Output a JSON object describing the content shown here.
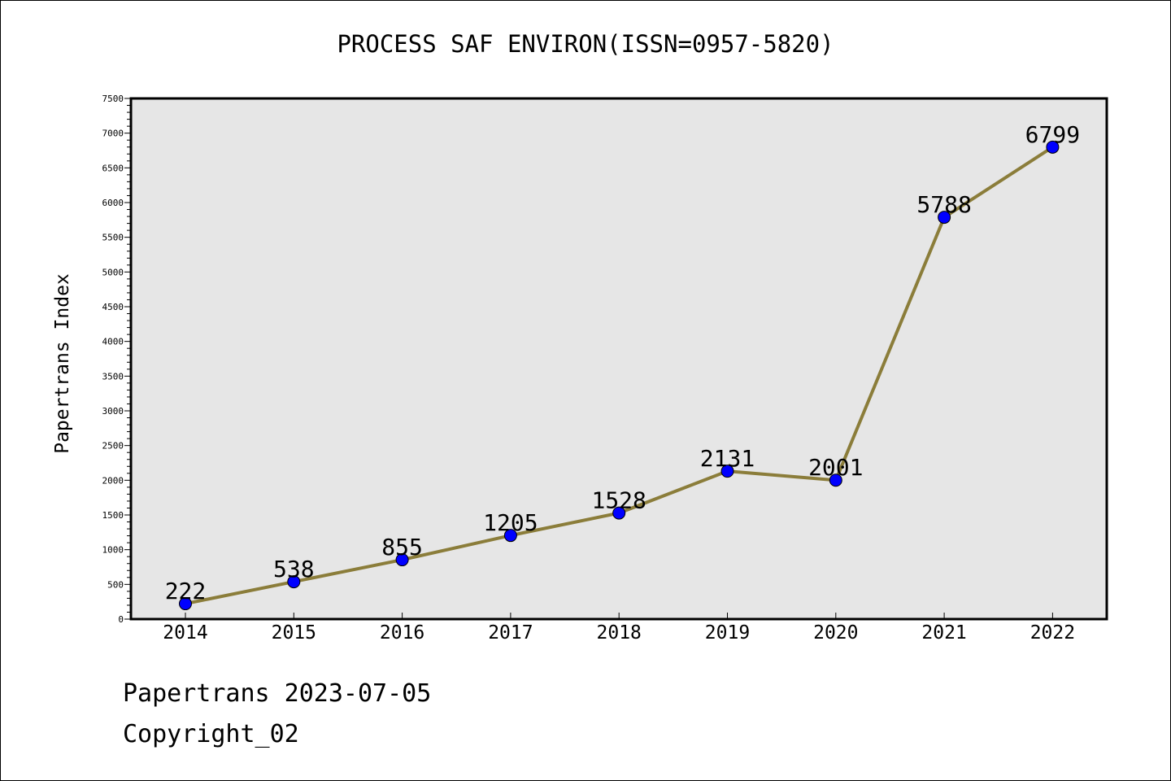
{
  "chart_data": {
    "type": "line",
    "title": "PROCESS SAF ENVIRON(ISSN=0957-5820)",
    "xlabel": "",
    "ylabel": "Papertrans Index",
    "categories": [
      "2014",
      "2015",
      "2016",
      "2017",
      "2018",
      "2019",
      "2020",
      "2021",
      "2022"
    ],
    "values": [
      222,
      538,
      855,
      1205,
      1528,
      2131,
      2001,
      5788,
      6799
    ],
    "ylim": [
      0,
      7500
    ],
    "yticks": [
      0,
      500,
      1000,
      1500,
      2000,
      2500,
      3000,
      3500,
      4000,
      4500,
      5000,
      5500,
      6000,
      6500,
      7000,
      7500
    ],
    "data_labels": true,
    "grid": false,
    "colors": {
      "line": "#8b7d3a",
      "marker": "#0000ff",
      "plot_background": "#e6e6e6"
    }
  },
  "footer": {
    "date_line": "Papertrans 2023-07-05",
    "copyright_line": "Copyright_02"
  }
}
